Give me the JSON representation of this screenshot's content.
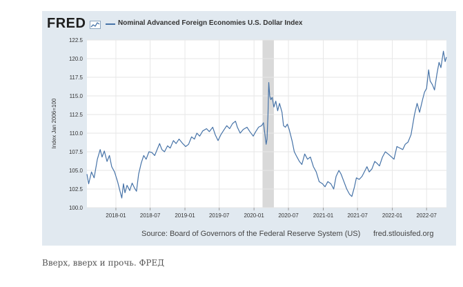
{
  "header": {
    "logo_text": "FRED",
    "logo_icon": "chart-line-icon",
    "series_title": "Nominal Advanced Foreign Economies U.S. Dollar Index"
  },
  "footer": {
    "source": "Source: Board of Governors of the Federal Reserve System (US)",
    "site": "fred.stlouisfed.org"
  },
  "caption": "Вверх, вверх и прочь.  ФРЕД",
  "colors": {
    "line": "#4572a7",
    "frame": "#e1e9f0",
    "recession": "#d9d9d9",
    "grid": "#e6e6e6"
  },
  "chart_data": {
    "type": "line",
    "title": "Nominal Advanced Foreign Economies U.S. Dollar Index",
    "ylabel": "Index Jan 2006=100",
    "xlabel": "",
    "ylim": [
      100.0,
      122.5
    ],
    "yticks": [
      "100.0",
      "102.5",
      "105.0",
      "107.5",
      "110.0",
      "112.5",
      "115.0",
      "117.5",
      "120.0",
      "122.5"
    ],
    "xlim": [
      "2017-08-01",
      "2022-10-14"
    ],
    "xticks": [
      {
        "date": "2018-01-01",
        "label": "2018-01"
      },
      {
        "date": "2018-07-01",
        "label": "2018-07"
      },
      {
        "date": "2019-01-01",
        "label": "2019-01"
      },
      {
        "date": "2019-07-01",
        "label": "2019-07"
      },
      {
        "date": "2020-01-01",
        "label": "2020-01"
      },
      {
        "date": "2020-07-01",
        "label": "2020-07"
      },
      {
        "date": "2021-01-01",
        "label": "2021-01"
      },
      {
        "date": "2021-07-01",
        "label": "2021-07"
      },
      {
        "date": "2022-01-01",
        "label": "2022-01"
      },
      {
        "date": "2022-07-01",
        "label": "2022-07"
      }
    ],
    "grid": true,
    "recession": {
      "start": "2020-02-15",
      "end": "2020-04-15"
    },
    "series": [
      {
        "values": [
          {
            "x": "2017-08-01",
            "y": 104.5
          },
          {
            "x": "2017-08-10",
            "y": 103.2
          },
          {
            "x": "2017-08-25",
            "y": 104.8
          },
          {
            "x": "2017-09-08",
            "y": 104.0
          },
          {
            "x": "2017-09-25",
            "y": 106.5
          },
          {
            "x": "2017-10-10",
            "y": 107.8
          },
          {
            "x": "2017-10-20",
            "y": 106.8
          },
          {
            "x": "2017-11-01",
            "y": 107.6
          },
          {
            "x": "2017-11-15",
            "y": 106.2
          },
          {
            "x": "2017-11-28",
            "y": 107.0
          },
          {
            "x": "2017-12-10",
            "y": 105.5
          },
          {
            "x": "2017-12-25",
            "y": 104.8
          },
          {
            "x": "2018-01-10",
            "y": 103.5
          },
          {
            "x": "2018-01-25",
            "y": 102.0
          },
          {
            "x": "2018-02-01",
            "y": 101.3
          },
          {
            "x": "2018-02-10",
            "y": 103.2
          },
          {
            "x": "2018-02-18",
            "y": 102.0
          },
          {
            "x": "2018-03-01",
            "y": 103.0
          },
          {
            "x": "2018-03-15",
            "y": 102.3
          },
          {
            "x": "2018-03-28",
            "y": 103.3
          },
          {
            "x": "2018-04-10",
            "y": 102.6
          },
          {
            "x": "2018-04-20",
            "y": 102.2
          },
          {
            "x": "2018-05-01",
            "y": 104.5
          },
          {
            "x": "2018-05-15",
            "y": 106.0
          },
          {
            "x": "2018-05-28",
            "y": 107.0
          },
          {
            "x": "2018-06-10",
            "y": 106.5
          },
          {
            "x": "2018-06-25",
            "y": 107.5
          },
          {
            "x": "2018-07-10",
            "y": 107.4
          },
          {
            "x": "2018-07-25",
            "y": 107.0
          },
          {
            "x": "2018-08-10",
            "y": 108.0
          },
          {
            "x": "2018-08-20",
            "y": 108.6
          },
          {
            "x": "2018-09-01",
            "y": 107.8
          },
          {
            "x": "2018-09-15",
            "y": 107.5
          },
          {
            "x": "2018-10-01",
            "y": 108.3
          },
          {
            "x": "2018-10-15",
            "y": 108.0
          },
          {
            "x": "2018-11-01",
            "y": 109.0
          },
          {
            "x": "2018-11-15",
            "y": 108.6
          },
          {
            "x": "2018-12-01",
            "y": 109.2
          },
          {
            "x": "2018-12-20",
            "y": 108.6
          },
          {
            "x": "2019-01-05",
            "y": 108.2
          },
          {
            "x": "2019-01-20",
            "y": 108.5
          },
          {
            "x": "2019-02-05",
            "y": 109.5
          },
          {
            "x": "2019-02-20",
            "y": 109.2
          },
          {
            "x": "2019-03-05",
            "y": 110.0
          },
          {
            "x": "2019-03-20",
            "y": 109.6
          },
          {
            "x": "2019-04-05",
            "y": 110.3
          },
          {
            "x": "2019-04-25",
            "y": 110.6
          },
          {
            "x": "2019-05-10",
            "y": 110.2
          },
          {
            "x": "2019-05-28",
            "y": 110.8
          },
          {
            "x": "2019-06-10",
            "y": 109.8
          },
          {
            "x": "2019-06-25",
            "y": 109.0
          },
          {
            "x": "2019-07-10",
            "y": 109.8
          },
          {
            "x": "2019-07-25",
            "y": 110.4
          },
          {
            "x": "2019-08-10",
            "y": 111.0
          },
          {
            "x": "2019-08-25",
            "y": 110.6
          },
          {
            "x": "2019-09-10",
            "y": 111.3
          },
          {
            "x": "2019-09-25",
            "y": 111.6
          },
          {
            "x": "2019-10-05",
            "y": 110.8
          },
          {
            "x": "2019-10-20",
            "y": 110.0
          },
          {
            "x": "2019-11-05",
            "y": 110.5
          },
          {
            "x": "2019-11-25",
            "y": 110.8
          },
          {
            "x": "2019-12-10",
            "y": 110.2
          },
          {
            "x": "2019-12-28",
            "y": 109.6
          },
          {
            "x": "2020-01-10",
            "y": 110.2
          },
          {
            "x": "2020-01-25",
            "y": 110.8
          },
          {
            "x": "2020-02-10",
            "y": 111.0
          },
          {
            "x": "2020-02-20",
            "y": 111.4
          },
          {
            "x": "2020-02-28",
            "y": 109.8
          },
          {
            "x": "2020-03-05",
            "y": 108.5
          },
          {
            "x": "2020-03-10",
            "y": 109.2
          },
          {
            "x": "2020-03-15",
            "y": 112.5
          },
          {
            "x": "2020-03-19",
            "y": 116.8
          },
          {
            "x": "2020-03-24",
            "y": 115.0
          },
          {
            "x": "2020-03-30",
            "y": 114.5
          },
          {
            "x": "2020-04-06",
            "y": 114.8
          },
          {
            "x": "2020-04-15",
            "y": 113.5
          },
          {
            "x": "2020-04-25",
            "y": 114.3
          },
          {
            "x": "2020-05-05",
            "y": 113.0
          },
          {
            "x": "2020-05-15",
            "y": 114.0
          },
          {
            "x": "2020-05-28",
            "y": 112.8
          },
          {
            "x": "2020-06-05",
            "y": 111.0
          },
          {
            "x": "2020-06-15",
            "y": 110.8
          },
          {
            "x": "2020-06-25",
            "y": 111.2
          },
          {
            "x": "2020-07-05",
            "y": 110.5
          },
          {
            "x": "2020-07-20",
            "y": 109.0
          },
          {
            "x": "2020-08-01",
            "y": 107.5
          },
          {
            "x": "2020-08-15",
            "y": 106.8
          },
          {
            "x": "2020-08-28",
            "y": 106.2
          },
          {
            "x": "2020-09-10",
            "y": 105.8
          },
          {
            "x": "2020-09-25",
            "y": 107.2
          },
          {
            "x": "2020-10-10",
            "y": 106.5
          },
          {
            "x": "2020-10-25",
            "y": 106.8
          },
          {
            "x": "2020-11-10",
            "y": 105.5
          },
          {
            "x": "2020-11-25",
            "y": 104.8
          },
          {
            "x": "2020-12-10",
            "y": 103.5
          },
          {
            "x": "2020-12-28",
            "y": 103.2
          },
          {
            "x": "2021-01-10",
            "y": 102.8
          },
          {
            "x": "2021-01-25",
            "y": 103.5
          },
          {
            "x": "2021-02-10",
            "y": 103.2
          },
          {
            "x": "2021-02-25",
            "y": 102.5
          },
          {
            "x": "2021-03-10",
            "y": 104.2
          },
          {
            "x": "2021-03-25",
            "y": 105.0
          },
          {
            "x": "2021-04-05",
            "y": 104.5
          },
          {
            "x": "2021-04-20",
            "y": 103.5
          },
          {
            "x": "2021-05-05",
            "y": 102.5
          },
          {
            "x": "2021-05-20",
            "y": 101.8
          },
          {
            "x": "2021-06-01",
            "y": 101.5
          },
          {
            "x": "2021-06-15",
            "y": 102.8
          },
          {
            "x": "2021-06-25",
            "y": 104.0
          },
          {
            "x": "2021-07-10",
            "y": 103.8
          },
          {
            "x": "2021-07-25",
            "y": 104.2
          },
          {
            "x": "2021-08-10",
            "y": 105.0
          },
          {
            "x": "2021-08-20",
            "y": 105.5
          },
          {
            "x": "2021-09-01",
            "y": 104.8
          },
          {
            "x": "2021-09-15",
            "y": 105.2
          },
          {
            "x": "2021-09-30",
            "y": 106.2
          },
          {
            "x": "2021-10-10",
            "y": 106.0
          },
          {
            "x": "2021-10-25",
            "y": 105.6
          },
          {
            "x": "2021-11-10",
            "y": 106.8
          },
          {
            "x": "2021-11-25",
            "y": 107.5
          },
          {
            "x": "2021-12-10",
            "y": 107.2
          },
          {
            "x": "2021-12-28",
            "y": 106.8
          },
          {
            "x": "2022-01-10",
            "y": 106.5
          },
          {
            "x": "2022-01-25",
            "y": 108.2
          },
          {
            "x": "2022-02-10",
            "y": 108.0
          },
          {
            "x": "2022-02-25",
            "y": 107.8
          },
          {
            "x": "2022-03-10",
            "y": 108.5
          },
          {
            "x": "2022-03-25",
            "y": 108.8
          },
          {
            "x": "2022-04-10",
            "y": 109.8
          },
          {
            "x": "2022-04-28",
            "y": 112.5
          },
          {
            "x": "2022-05-12",
            "y": 114.0
          },
          {
            "x": "2022-05-25",
            "y": 112.8
          },
          {
            "x": "2022-06-10",
            "y": 114.5
          },
          {
            "x": "2022-06-20",
            "y": 115.5
          },
          {
            "x": "2022-07-01",
            "y": 116.0
          },
          {
            "x": "2022-07-12",
            "y": 118.5
          },
          {
            "x": "2022-07-20",
            "y": 117.0
          },
          {
            "x": "2022-08-01",
            "y": 116.5
          },
          {
            "x": "2022-08-12",
            "y": 115.8
          },
          {
            "x": "2022-08-25",
            "y": 118.0
          },
          {
            "x": "2022-09-05",
            "y": 119.5
          },
          {
            "x": "2022-09-15",
            "y": 118.8
          },
          {
            "x": "2022-09-28",
            "y": 121.0
          },
          {
            "x": "2022-10-07",
            "y": 119.6
          },
          {
            "x": "2022-10-14",
            "y": 120.2
          }
        ]
      }
    ]
  }
}
